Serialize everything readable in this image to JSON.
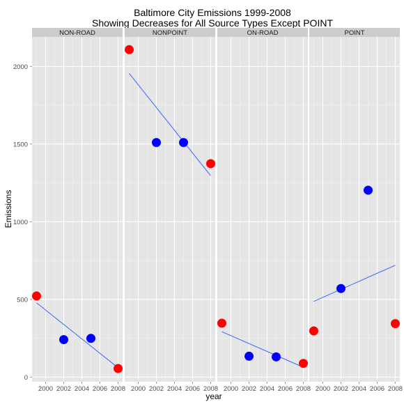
{
  "chart_data": {
    "type": "scatter",
    "title": "Baltimore City Emissions 1999-2008",
    "subtitle": "Showing Decreases for All Source Types Except POINT",
    "xlabel": "year",
    "ylabel": "Emissions",
    "xlim": [
      1998.5,
      2008.5
    ],
    "ylim": [
      -30,
      2190
    ],
    "x_ticks": [
      2000,
      2002,
      2004,
      2006,
      2008
    ],
    "y_ticks": [
      0,
      500,
      1000,
      1500,
      2000
    ],
    "grid": true,
    "legend": "none",
    "colors": {
      "red": "#ff0000",
      "blue": "#0000ff",
      "trend": "#3366ff",
      "panel_bg": "#e5e5e5",
      "strip_bg": "#cccccc",
      "grid_major": "#ffffff",
      "grid_minor": "#f2f2f2"
    },
    "panels": [
      {
        "label": "NON-ROAD",
        "points": [
          {
            "x": 1999,
            "y": 522,
            "color": "red"
          },
          {
            "x": 2002,
            "y": 241,
            "color": "blue"
          },
          {
            "x": 2005,
            "y": 249,
            "color": "blue"
          },
          {
            "x": 2008,
            "y": 55,
            "color": "red"
          }
        ],
        "trend": [
          {
            "x": 1999,
            "y": 478
          },
          {
            "x": 2008,
            "y": 60
          }
        ]
      },
      {
        "label": "NONPOINT",
        "points": [
          {
            "x": 1999,
            "y": 2108,
            "color": "red"
          },
          {
            "x": 2002,
            "y": 1510,
            "color": "blue"
          },
          {
            "x": 2005,
            "y": 1510,
            "color": "blue"
          },
          {
            "x": 2008,
            "y": 1374,
            "color": "red"
          }
        ],
        "trend": [
          {
            "x": 1999,
            "y": 1955
          },
          {
            "x": 2008,
            "y": 1296
          }
        ]
      },
      {
        "label": "ON-ROAD",
        "points": [
          {
            "x": 1999,
            "y": 347,
            "color": "red"
          },
          {
            "x": 2002,
            "y": 134,
            "color": "blue"
          },
          {
            "x": 2005,
            "y": 130,
            "color": "blue"
          },
          {
            "x": 2008,
            "y": 88,
            "color": "red"
          }
        ],
        "trend": [
          {
            "x": 1999,
            "y": 292
          },
          {
            "x": 2008,
            "y": 63
          }
        ]
      },
      {
        "label": "POINT",
        "points": [
          {
            "x": 1999,
            "y": 297,
            "color": "red"
          },
          {
            "x": 2002,
            "y": 570,
            "color": "blue"
          },
          {
            "x": 2005,
            "y": 1203,
            "color": "blue"
          },
          {
            "x": 2008,
            "y": 344,
            "color": "red"
          }
        ],
        "trend": [
          {
            "x": 1999,
            "y": 487
          },
          {
            "x": 2008,
            "y": 720
          }
        ]
      }
    ]
  }
}
